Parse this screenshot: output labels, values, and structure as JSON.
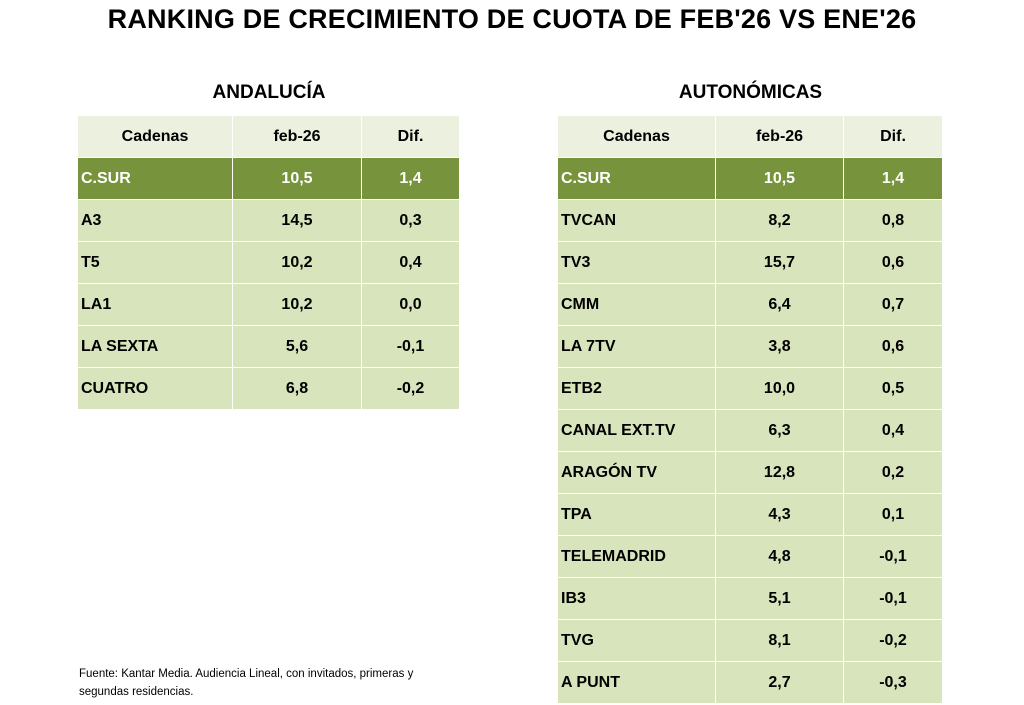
{
  "title": "RANKING DE CRECIMIENTO DE CUOTA DE FEB'26 VS ENE'26",
  "colors": {
    "header": "#ebf1de",
    "highlight": "#77933c",
    "row": "#d8e4bc"
  },
  "tables": [
    {
      "id": "left",
      "title": "ANDALUCÍA",
      "headers": [
        "Cadenas",
        "feb-26",
        "Dif."
      ],
      "rows": [
        [
          "C.SUR",
          "10,5",
          "1,4"
        ],
        [
          "A3",
          "14,5",
          "0,3"
        ],
        [
          "T5",
          "10,2",
          "0,4"
        ],
        [
          "LA1",
          "10,2",
          "0,0"
        ],
        [
          "LA SEXTA",
          "5,6",
          "-0,1"
        ],
        [
          "CUATRO",
          "6,8",
          "-0,2"
        ]
      ]
    },
    {
      "id": "right",
      "title": "AUTONÓMICAS",
      "headers": [
        "Cadenas",
        "feb-26",
        "Dif."
      ],
      "rows": [
        [
          "C.SUR",
          "10,5",
          "1,4"
        ],
        [
          "TVCAN",
          "8,2",
          "0,8"
        ],
        [
          "TV3",
          "15,7",
          "0,6"
        ],
        [
          "CMM",
          "6,4",
          "0,7"
        ],
        [
          "LA 7TV",
          "3,8",
          "0,6"
        ],
        [
          "ETB2",
          "10,0",
          "0,5"
        ],
        [
          "CANAL EXT.TV",
          "6,3",
          "0,4"
        ],
        [
          "ARAGÓN TV",
          "12,8",
          "0,2"
        ],
        [
          "TPA",
          "4,3",
          "0,1"
        ],
        [
          "TELEMADRID",
          "4,8",
          "-0,1"
        ],
        [
          "IB3",
          "5,1",
          "-0,1"
        ],
        [
          "TVG",
          "8,1",
          "-0,2"
        ],
        [
          "A PUNT",
          "2,7",
          "-0,3"
        ]
      ]
    }
  ],
  "source": "Fuente: Kantar Media. Audiencia Lineal, con invitados, primeras y segundas residencias."
}
